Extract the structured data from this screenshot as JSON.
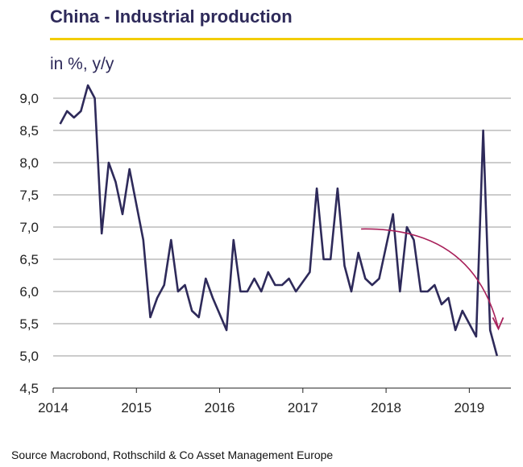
{
  "colors": {
    "title": "#2e2a5a",
    "accent_rule": "#f2cc00",
    "line": "#2e2a5a",
    "trend_arrow": "#a8205a",
    "grid": "#9a9a9a"
  },
  "chart_data": {
    "type": "line",
    "title": "China - Industrial production",
    "ylabel": "in %, y/y",
    "xlabel": "",
    "source": "Source Macrobond,  Rothschild & Co Asset Management  Europe",
    "ylim": [
      4.5,
      9.0
    ],
    "xlim": [
      2014.0,
      2019.5
    ],
    "grid": true,
    "yticks": [
      "4,5",
      "5,0",
      "5,5",
      "6,0",
      "6,5",
      "7,0",
      "7,5",
      "8,0",
      "8,5",
      "9,0"
    ],
    "xticks": [
      "2014",
      "2015",
      "2016",
      "2017",
      "2018",
      "2019"
    ],
    "series": [
      {
        "x": [
          2014.083,
          2014.167,
          2014.25,
          2014.333,
          2014.417,
          2014.5,
          2014.583,
          2014.667,
          2014.75,
          2014.833,
          2014.917,
          2015.083,
          2015.167,
          2015.25,
          2015.333,
          2015.417,
          2015.5,
          2015.583,
          2015.667,
          2015.75,
          2015.833,
          2015.917,
          2016.083,
          2016.167,
          2016.25,
          2016.333,
          2016.417,
          2016.5,
          2016.583,
          2016.667,
          2016.75,
          2016.833,
          2016.917,
          2017.083,
          2017.167,
          2017.25,
          2017.333,
          2017.417,
          2017.5,
          2017.583,
          2017.667,
          2017.75,
          2017.833,
          2017.917,
          2018.083,
          2018.167,
          2018.25,
          2018.333,
          2018.417,
          2018.5,
          2018.583,
          2018.667,
          2018.75,
          2018.833,
          2018.917,
          2019.083,
          2019.167,
          2019.25,
          2019.333
        ],
        "values": [
          8.6,
          8.8,
          8.7,
          8.8,
          9.2,
          9.0,
          6.9,
          8.0,
          7.7,
          7.2,
          7.9,
          6.8,
          5.6,
          5.9,
          6.1,
          6.8,
          6.0,
          6.1,
          5.7,
          5.6,
          6.2,
          5.9,
          5.4,
          6.8,
          6.0,
          6.0,
          6.2,
          6.0,
          6.3,
          6.1,
          6.1,
          6.2,
          6.0,
          6.3,
          7.6,
          6.5,
          6.5,
          7.6,
          6.4,
          6.0,
          6.6,
          6.2,
          6.1,
          6.2,
          7.2,
          6.0,
          7.0,
          6.8,
          6.0,
          6.0,
          6.1,
          5.8,
          5.9,
          5.4,
          5.7,
          5.3,
          8.5,
          5.4,
          5.0
        ]
      }
    ]
  }
}
